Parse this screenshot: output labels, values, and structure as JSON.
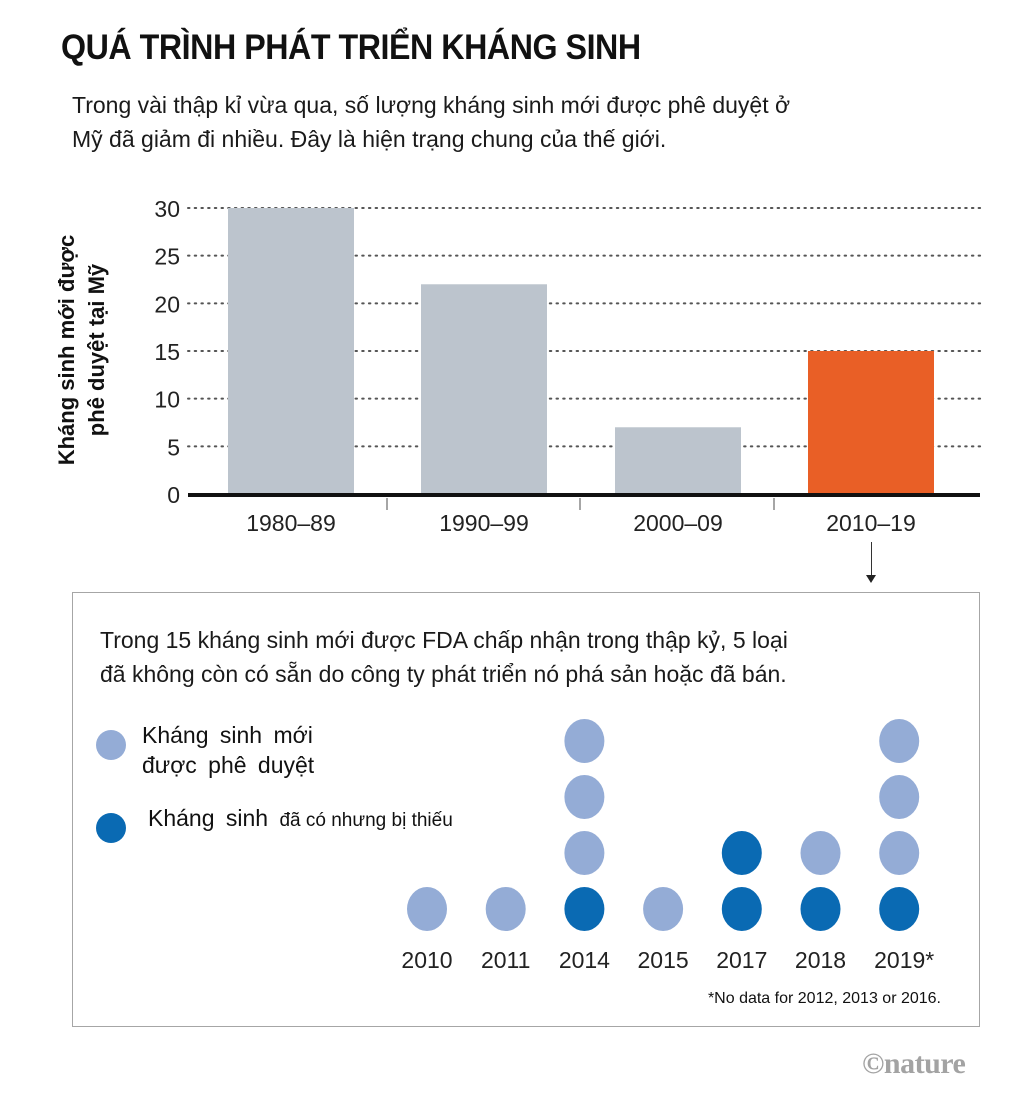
{
  "title": "QUÁ TRÌNH PHÁT TRIỂN KHÁNG SINH",
  "subtitle": "Trong vài thập kỉ vừa qua, số lượng kháng sinh mới được phê duyệt ở\nMỹ đã giảm đi nhiều. Đây là hiện trạng chung của thế giới.",
  "colors": {
    "bar_default": "#bcc4cd",
    "bar_highlight": "#e95f26",
    "dot_approved": "#94acd6",
    "dot_shortage": "#0a6ab3",
    "gridline": "#555555",
    "axis": "#111111"
  },
  "chart_data": [
    {
      "type": "bar",
      "title": "",
      "xlabel": "",
      "ylabel": "Kháng sinh mới được phê duyệt tại Mỹ",
      "ylabel_lines": [
        "Kháng sinh mới được",
        "phê duyệt tại Mỹ"
      ],
      "categories": [
        "1980–89",
        "1990–99",
        "2000–09",
        "2010–19"
      ],
      "values": [
        30,
        22,
        7,
        15
      ],
      "highlight": "2010–19",
      "ylim": [
        0,
        30
      ],
      "yticks": [
        0,
        5,
        10,
        15,
        20,
        25,
        30
      ],
      "grid": "horizontal dotted"
    },
    {
      "type": "scatter",
      "subtype": "dot-stack",
      "description": "Trong 15 kháng sinh mới được FDA chấp nhận trong thập kỷ, 5 loại\nđã không còn có sẵn do công ty phát triển nó phá sản hoặc đã bán.",
      "categories": [
        "2010",
        "2011",
        "2014",
        "2015",
        "2017",
        "2018",
        "2019*"
      ],
      "series": [
        {
          "name": "Kháng sinh đã có nhưng bị thiếu",
          "key": "shortage",
          "values": [
            0,
            0,
            1,
            0,
            2,
            1,
            1
          ]
        },
        {
          "name": "Kháng sinh mới được phê duyệt",
          "key": "approved",
          "values": [
            1,
            1,
            3,
            1,
            0,
            1,
            3
          ]
        }
      ],
      "legend": [
        {
          "label": "Kháng sinh  mới\nđược phê duyệt",
          "key": "approved"
        },
        {
          "label_main": "Kháng  sinh ",
          "label_small": "đã có nhưng bị thiếu",
          "key": "shortage"
        }
      ],
      "legend_position": "left",
      "footnote": "*No data for 2012, 2013 or 2016."
    }
  ],
  "credit": "©nature"
}
